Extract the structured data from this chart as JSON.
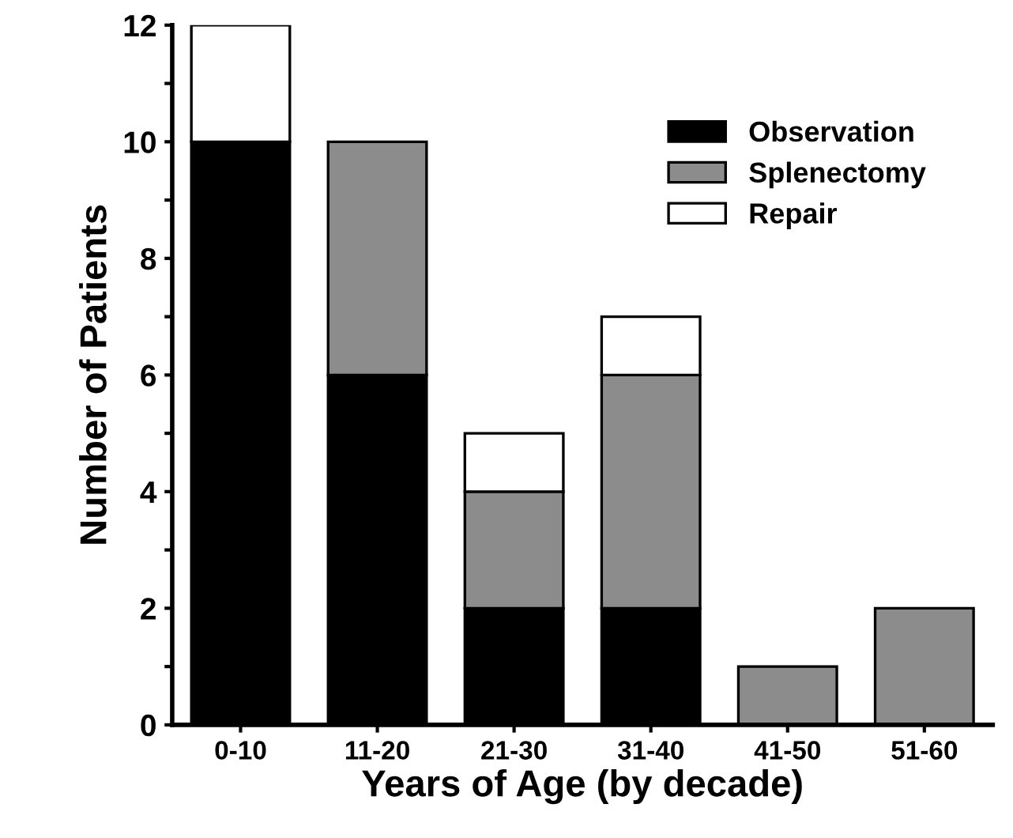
{
  "chart_data": {
    "type": "bar",
    "stacked": true,
    "xlabel": "Years of Age (by decade)",
    "ylabel": "Number of Patients",
    "categories": [
      "0-10",
      "11-20",
      "21-30",
      "31-40",
      "41-50",
      "51-60"
    ],
    "series": [
      {
        "name": "Observation",
        "color": "#000000",
        "values": [
          10,
          6,
          2,
          2,
          0,
          0
        ]
      },
      {
        "name": "Splenectomy",
        "color": "#8c8c8c",
        "values": [
          0,
          4,
          2,
          4,
          1,
          2
        ]
      },
      {
        "name": "Repair",
        "color": "#ffffff",
        "values": [
          2,
          0,
          1,
          1,
          0,
          0
        ]
      }
    ],
    "ylim": [
      0,
      12
    ],
    "yticks": [
      0,
      {
        "value": 1,
        "label": null
      },
      2,
      {
        "value": 3,
        "label": null
      },
      4,
      {
        "value": 5,
        "label": null
      },
      6,
      {
        "value": 7,
        "label": null
      },
      8,
      {
        "value": 9,
        "label": null
      },
      10,
      {
        "value": 11,
        "label": null
      },
      12
    ],
    "grid": false,
    "legend": "top right"
  }
}
